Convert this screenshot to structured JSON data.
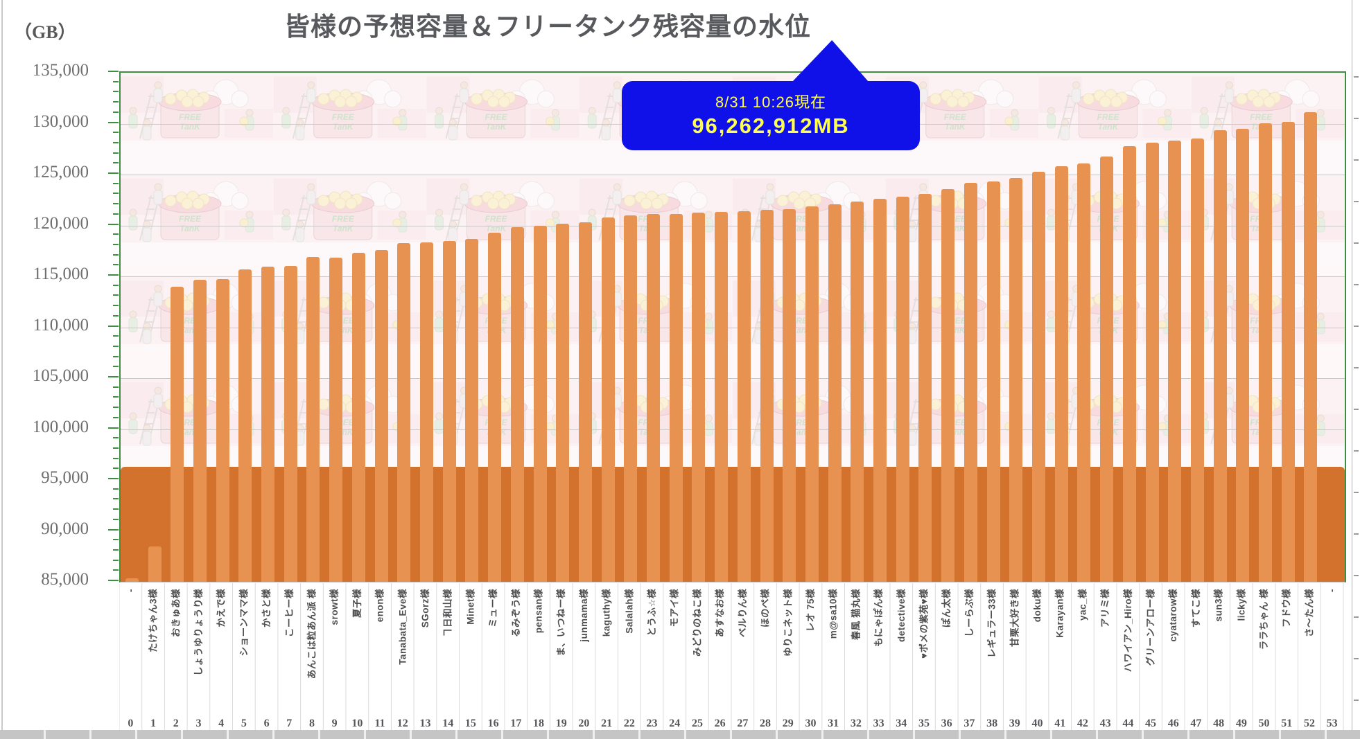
{
  "title": "皆様の予想容量＆フリータンク残容量の水位",
  "unit_label": "（GB）",
  "callout": {
    "line1": "8/31 10:26現在",
    "line2": "96,262,912MB"
  },
  "watermark": {
    "line1": "FREE",
    "line2": "TanK"
  },
  "colors": {
    "bar": "#e79251",
    "tank_fill": "#d2722c",
    "axis_green": "#3e8e41",
    "gridline": "#c9c9c9",
    "callout_bg": "#1010e8",
    "callout_text": "#ffff4e",
    "label_text": "#4e4e50"
  },
  "chart_data": {
    "type": "bar",
    "title": "皆様の予想容量＆フリータンク残容量の水位",
    "ylabel": "（GB）",
    "ylim": [
      85000,
      135000
    ],
    "ytick_step": 5000,
    "ytick_labels": [
      "135,000",
      "130,000",
      "125,000",
      "120,000",
      "115,000",
      "110,000",
      "105,000",
      "100,000",
      "95,000",
      "90,000",
      "85,000"
    ],
    "grid": true,
    "legend": "none",
    "tank_level_gb": 96263,
    "tank_level_label": "96,262,912MB",
    "as_of": "8/31 10:26現在",
    "index_labels": [
      "0",
      "1",
      "2",
      "3",
      "4",
      "5",
      "6",
      "7",
      "8",
      "9",
      "10",
      "11",
      "12",
      "13",
      "14",
      "15",
      "16",
      "17",
      "18",
      "19",
      "20",
      "21",
      "22",
      "23",
      "24",
      "25",
      "26",
      "27",
      "28",
      "29",
      "30",
      "31",
      "32",
      "33",
      "34",
      "35",
      "36",
      "37",
      "38",
      "39",
      "40",
      "41",
      "42",
      "43",
      "44",
      "45",
      "46",
      "47",
      "48",
      "49",
      "50",
      "51",
      "52",
      "53"
    ],
    "categories": [
      "-",
      "たけちゃん3様",
      "おきゅあ様",
      "しょうゆりょうり様",
      "かえで様",
      "ショーンママ様",
      "かさと様",
      "こーヒー様",
      "あんこは粒あん派 様",
      "srowt様",
      "夏子様",
      "enon様",
      "Tanabata_Eve様",
      "SGorz様",
      "ヿ日和山様",
      "Minet様",
      "ミュー様",
      "るみぞう様",
      "pensan様",
      "ま、いつねー様",
      "junmama様",
      "kaguthy様",
      "Salalah様",
      "とうふ☆様",
      "モアイ様",
      "みどりのねこ様",
      "あすなお様",
      "ベルりん様",
      "ほのぺ様",
      "ゆりこネット様",
      "レオ 75様",
      "m@sa10様",
      "春風 猫丸様",
      "もにゃぽん様",
      "detective様",
      "♥ポメの紫苑♥様",
      "ぽん太様",
      "しーらぶ様",
      "レギュラー33様",
      "甘栗大好き様",
      "doku様",
      "Karayan様",
      "yac_様",
      "アリミ様",
      "ハワイアン_Hiro様",
      "グリーンアロー様",
      "cyatarow様",
      "すてこ様",
      "sun3様",
      "licky様",
      "ララちゃん 様",
      "フドウ様",
      "さ～たん様",
      "-"
    ],
    "values": [
      85350,
      88500,
      114000,
      114650,
      114750,
      115650,
      115930,
      116000,
      116880,
      116820,
      117330,
      117580,
      118260,
      118310,
      118450,
      118650,
      119300,
      119850,
      120000,
      120150,
      120300,
      120750,
      121000,
      121150,
      121150,
      121250,
      121300,
      121400,
      121550,
      121600,
      121900,
      122050,
      122350,
      122600,
      122850,
      123100,
      123600,
      124200,
      124350,
      124650,
      125250,
      125800,
      126100,
      126750,
      127800,
      128150,
      128300,
      128550,
      129350,
      129500,
      130050,
      130200,
      131150,
      null
    ]
  }
}
